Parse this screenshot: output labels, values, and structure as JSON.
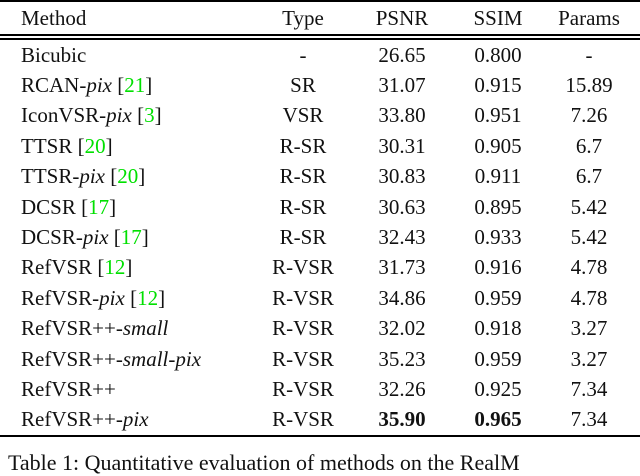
{
  "colors": {
    "background": "#ffffff",
    "text": "#111111",
    "citation_green": "#00e000"
  },
  "table": {
    "columns": [
      "Method",
      "Type",
      "PSNR",
      "SSIM",
      "Params"
    ],
    "rows": [
      {
        "method": [
          {
            "text": "Bicubic"
          }
        ],
        "type": "-",
        "psnr": "26.65",
        "ssim": "0.800",
        "params": "-"
      },
      {
        "method": [
          {
            "text": "RCAN-"
          },
          {
            "text": "pix",
            "style": "italic"
          },
          {
            "text": " ["
          },
          {
            "text": "21",
            "style": "cite"
          },
          {
            "text": "]"
          }
        ],
        "type": "SR",
        "psnr": "31.07",
        "ssim": "0.915",
        "params": "15.89"
      },
      {
        "method": [
          {
            "text": "IconVSR-"
          },
          {
            "text": "pix",
            "style": "italic"
          },
          {
            "text": " ["
          },
          {
            "text": "3",
            "style": "cite"
          },
          {
            "text": "]"
          }
        ],
        "type": "VSR",
        "psnr": "33.80",
        "ssim": "0.951",
        "params": "7.26"
      },
      {
        "method": [
          {
            "text": "TTSR ["
          },
          {
            "text": "20",
            "style": "cite"
          },
          {
            "text": "]"
          }
        ],
        "type": "R-SR",
        "psnr": "30.31",
        "ssim": "0.905",
        "params": "6.7"
      },
      {
        "method": [
          {
            "text": "TTSR-"
          },
          {
            "text": "pix",
            "style": "italic"
          },
          {
            "text": " ["
          },
          {
            "text": "20",
            "style": "cite"
          },
          {
            "text": "]"
          }
        ],
        "type": "R-SR",
        "psnr": "30.83",
        "ssim": "0.911",
        "params": "6.7"
      },
      {
        "method": [
          {
            "text": "DCSR ["
          },
          {
            "text": "17",
            "style": "cite"
          },
          {
            "text": "]"
          }
        ],
        "type": "R-SR",
        "psnr": "30.63",
        "ssim": "0.895",
        "params": "5.42"
      },
      {
        "method": [
          {
            "text": "DCSR-"
          },
          {
            "text": "pix",
            "style": "italic"
          },
          {
            "text": " ["
          },
          {
            "text": "17",
            "style": "cite"
          },
          {
            "text": "]"
          }
        ],
        "type": "R-SR",
        "psnr": "32.43",
        "ssim": "0.933",
        "params": "5.42"
      },
      {
        "method": [
          {
            "text": "RefVSR ["
          },
          {
            "text": "12",
            "style": "cite"
          },
          {
            "text": "]"
          }
        ],
        "type": "R-VSR",
        "psnr": "31.73",
        "ssim": "0.916",
        "params": "4.78"
      },
      {
        "method": [
          {
            "text": "RefVSR-"
          },
          {
            "text": "pix",
            "style": "italic"
          },
          {
            "text": " ["
          },
          {
            "text": "12",
            "style": "cite"
          },
          {
            "text": "]"
          }
        ],
        "type": "R-VSR",
        "psnr": "34.86",
        "ssim": "0.959",
        "params": "4.78"
      },
      {
        "method": [
          {
            "text": "RefVSR++-"
          },
          {
            "text": "small",
            "style": "italic"
          }
        ],
        "type": "R-VSR",
        "psnr": "32.02",
        "ssim": "0.918",
        "params": "3.27"
      },
      {
        "method": [
          {
            "text": "RefVSR++-"
          },
          {
            "text": "small",
            "style": "italic"
          },
          {
            "text": "-"
          },
          {
            "text": "pix",
            "style": "italic"
          }
        ],
        "type": "R-VSR",
        "psnr": "35.23",
        "ssim": "0.959",
        "params": "3.27"
      },
      {
        "method": [
          {
            "text": "RefVSR++"
          }
        ],
        "type": "R-VSR",
        "psnr": "32.26",
        "ssim": "0.925",
        "params": "7.34"
      },
      {
        "method": [
          {
            "text": "RefVSR++-"
          },
          {
            "text": "pix",
            "style": "italic"
          }
        ],
        "type": "R-VSR",
        "psnr": "35.90",
        "ssim": "0.965",
        "params": "7.34",
        "bold_cols": [
          "psnr",
          "ssim"
        ]
      }
    ]
  },
  "caption": "Table 1: Quantitative evaluation of methods on the RealM"
}
